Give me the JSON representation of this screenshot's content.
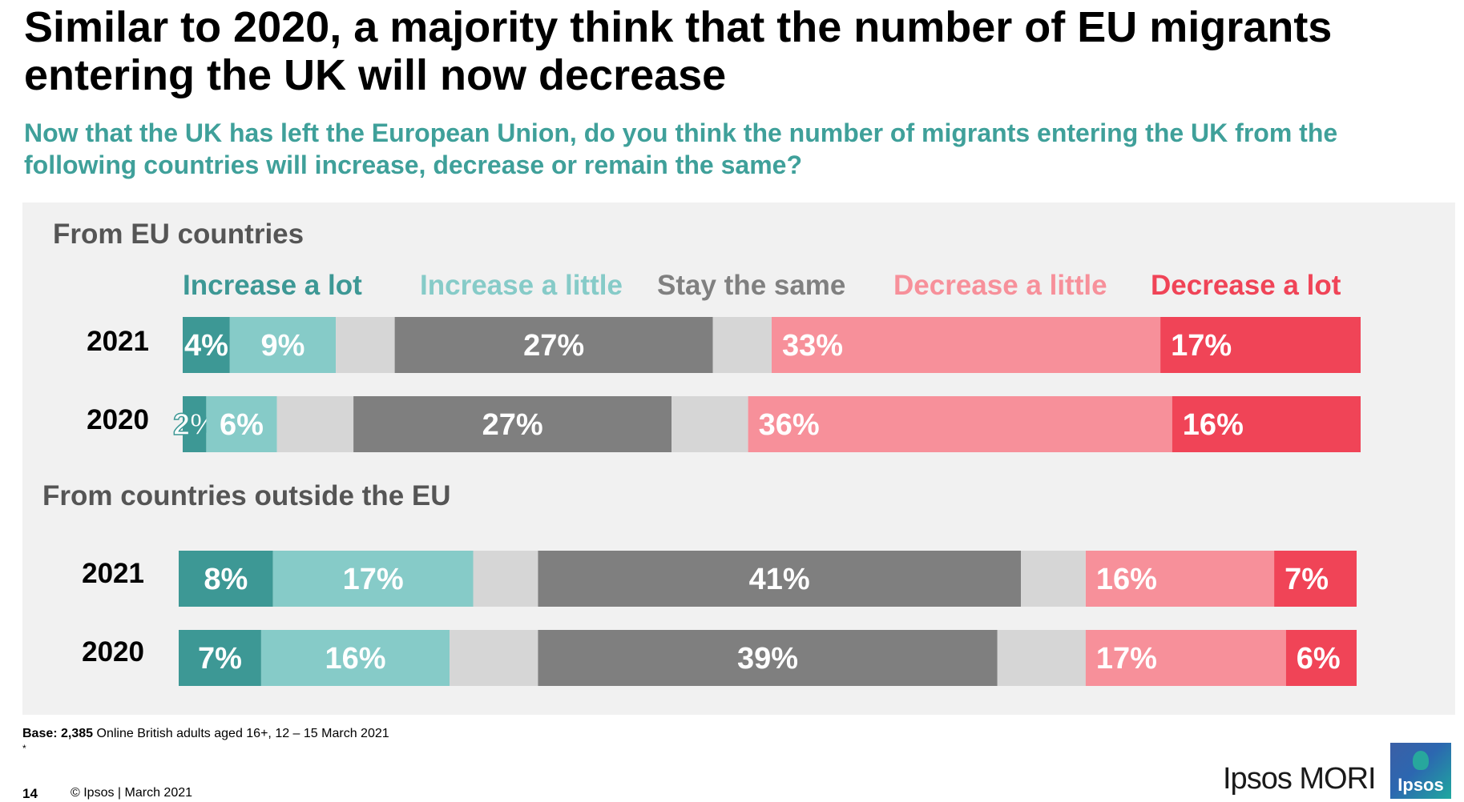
{
  "title": "Similar to 2020, a majority think that the number of EU migrants entering the UK will now decrease",
  "subtitle": "Now that the UK has left the European Union, do you think the number of migrants entering the UK from the following countries will increase, decrease or remain the same?",
  "footer": {
    "base_bold": "Base: 2,385",
    "base_rest": " Online British adults aged 16+, 12 – 15 March 2021",
    "asterisk": "*",
    "page_number": "14",
    "copyright": "© Ipsos | March 2021",
    "brand": "Ipsos MORI",
    "logo_text": "Ipsos"
  },
  "colors": {
    "increase_lot": "#3d9895",
    "increase_little": "#86cbc8",
    "gap": "#d6d6d6",
    "stay_same": "#7f7f7f",
    "decrease_little": "#f7909a",
    "decrease_lot": "#f04457"
  },
  "chart_data": {
    "type": "bar",
    "orientation": "horizontal-stacked",
    "legend": [
      {
        "key": "increase_lot",
        "label": "Increase a lot"
      },
      {
        "key": "increase_little",
        "label": "Increase a little"
      },
      {
        "key": "stay_same",
        "label": "Stay the same"
      },
      {
        "key": "decrease_little",
        "label": "Decrease a little"
      },
      {
        "key": "decrease_lot",
        "label": "Decrease a lot"
      }
    ],
    "groups": [
      {
        "title": "From EU countries",
        "rows": [
          {
            "year": "2021",
            "segments": [
              {
                "key": "increase_lot",
                "value": 4,
                "label": "4%"
              },
              {
                "key": "increase_little",
                "value": 9,
                "label": "9%"
              },
              {
                "key": "gap",
                "value": 5,
                "label": ""
              },
              {
                "key": "stay_same",
                "value": 27,
                "label": "27%"
              },
              {
                "key": "gap",
                "value": 5,
                "label": ""
              },
              {
                "key": "decrease_little",
                "value": 33,
                "label": "33%"
              },
              {
                "key": "decrease_lot",
                "value": 17,
                "label": "17%"
              }
            ]
          },
          {
            "year": "2020",
            "segments": [
              {
                "key": "increase_lot",
                "value": 2,
                "label": "2%"
              },
              {
                "key": "increase_little",
                "value": 6,
                "label": "6%"
              },
              {
                "key": "gap",
                "value": 6.5,
                "label": ""
              },
              {
                "key": "stay_same",
                "value": 27,
                "label": "27%"
              },
              {
                "key": "gap",
                "value": 6.5,
                "label": ""
              },
              {
                "key": "decrease_little",
                "value": 36,
                "label": "36%"
              },
              {
                "key": "decrease_lot",
                "value": 16,
                "label": "16%"
              }
            ]
          }
        ]
      },
      {
        "title": "From countries outside the EU",
        "rows": [
          {
            "year": "2021",
            "segments": [
              {
                "key": "increase_lot",
                "value": 8,
                "label": "8%"
              },
              {
                "key": "increase_little",
                "value": 17,
                "label": "17%"
              },
              {
                "key": "gap",
                "value": 5.5,
                "label": ""
              },
              {
                "key": "stay_same",
                "value": 41,
                "label": "41%"
              },
              {
                "key": "gap",
                "value": 5.5,
                "label": ""
              },
              {
                "key": "decrease_little",
                "value": 16,
                "label": "16%"
              },
              {
                "key": "decrease_lot",
                "value": 7,
                "label": "7%"
              }
            ]
          },
          {
            "year": "2020",
            "segments": [
              {
                "key": "increase_lot",
                "value": 7,
                "label": "7%"
              },
              {
                "key": "increase_little",
                "value": 16,
                "label": "16%"
              },
              {
                "key": "gap",
                "value": 7.5,
                "label": ""
              },
              {
                "key": "stay_same",
                "value": 39,
                "label": "39%"
              },
              {
                "key": "gap",
                "value": 7.5,
                "label": ""
              },
              {
                "key": "decrease_little",
                "value": 17,
                "label": "17%"
              },
              {
                "key": "decrease_lot",
                "value": 6,
                "label": "6%"
              }
            ]
          }
        ]
      }
    ]
  }
}
